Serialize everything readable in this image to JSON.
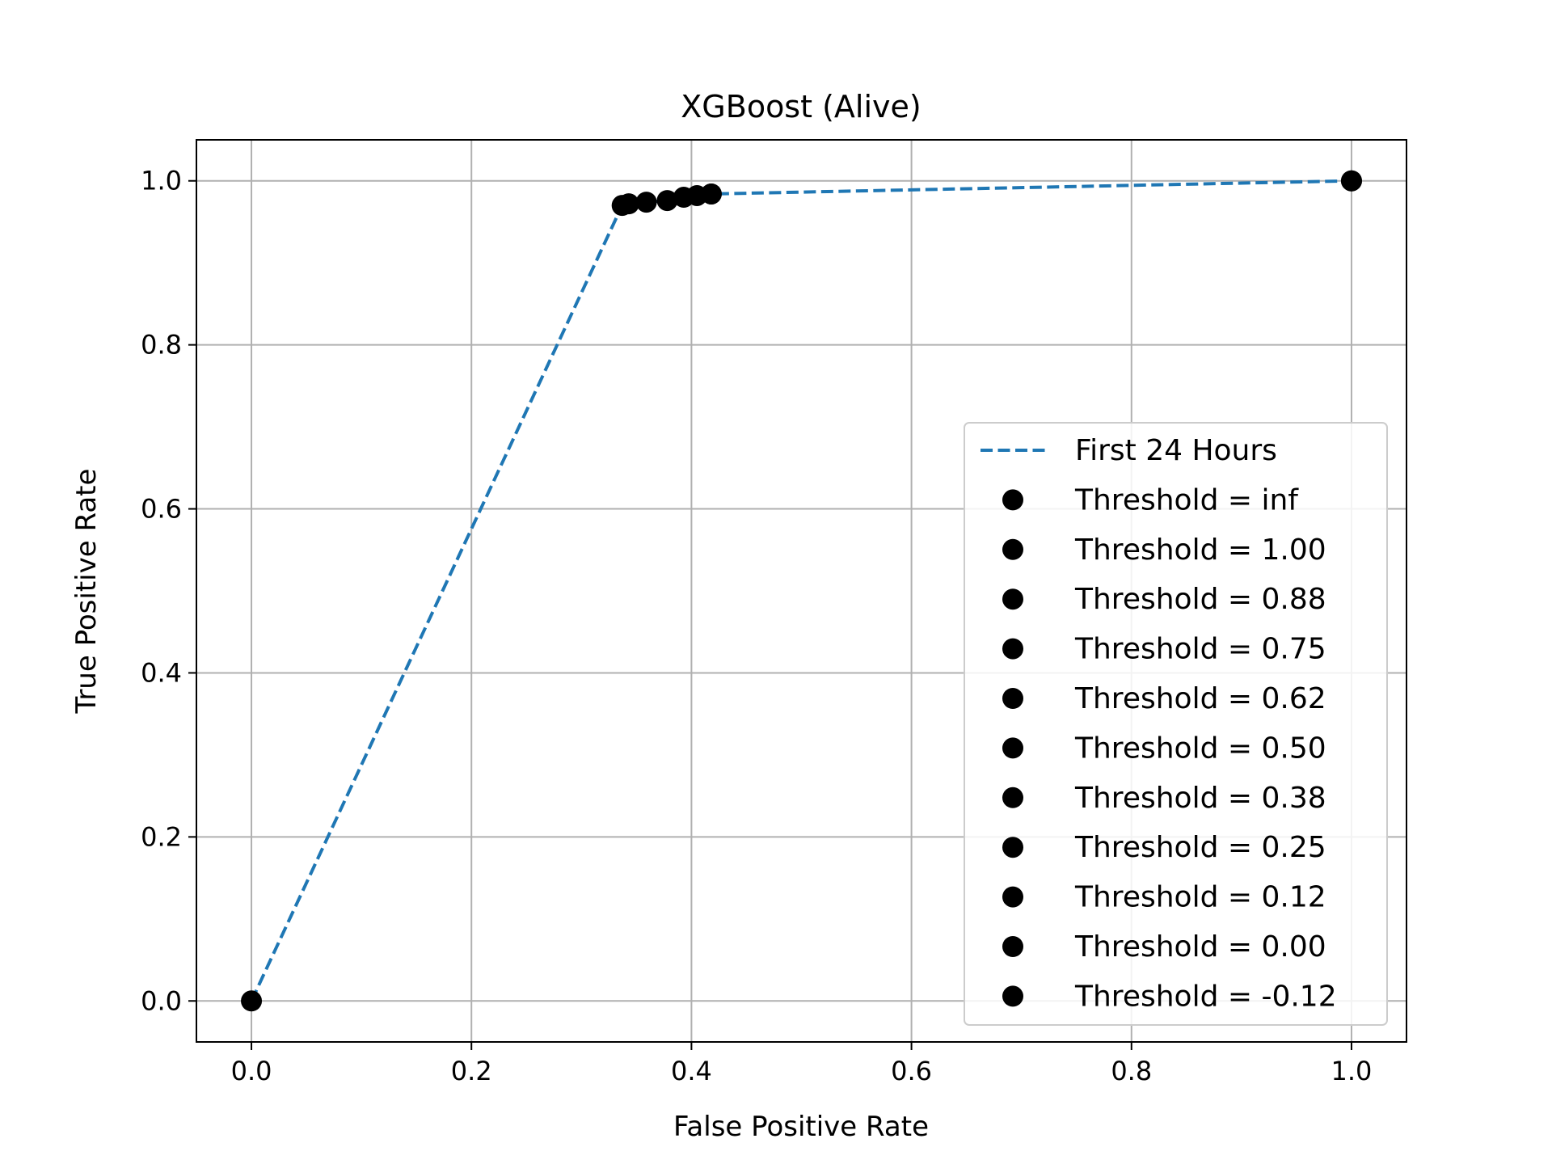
{
  "chart_data": {
    "type": "line",
    "title": "XGBoost (Alive)",
    "xlabel": "False Positive Rate",
    "ylabel": "True Positive Rate",
    "xlim": [
      -0.05,
      1.05
    ],
    "ylim": [
      -0.05,
      1.05
    ],
    "xticks": [
      "0.0",
      "0.2",
      "0.4",
      "0.6",
      "0.8",
      "1.0"
    ],
    "yticks": [
      "0.0",
      "0.2",
      "0.4",
      "0.6",
      "0.8",
      "1.0"
    ],
    "grid": true,
    "legend_position": "lower-right",
    "line_color": "#1f77b4",
    "point_color": "#000000",
    "series": [
      {
        "name": "First 24 Hours",
        "style": "dashed",
        "x": [
          0.0,
          0.337,
          0.343,
          0.359,
          0.378,
          0.393,
          0.405,
          0.418,
          1.0
        ],
        "y": [
          0.0,
          0.97,
          0.972,
          0.974,
          0.976,
          0.98,
          0.982,
          0.984,
          1.0
        ]
      }
    ],
    "points": [
      {
        "label": "Threshold = inf",
        "x": 0.0,
        "y": 0.0
      },
      {
        "label": "Threshold = 1.00",
        "x": 0.337,
        "y": 0.97
      },
      {
        "label": "Threshold = 0.88",
        "x": 0.343,
        "y": 0.972
      },
      {
        "label": "Threshold = 0.75",
        "x": 0.359,
        "y": 0.974
      },
      {
        "label": "Threshold = 0.62",
        "x": 0.378,
        "y": 0.976
      },
      {
        "label": "Threshold = 0.50",
        "x": 0.393,
        "y": 0.98
      },
      {
        "label": "Threshold = 0.38",
        "x": 0.405,
        "y": 0.982
      },
      {
        "label": "Threshold = 0.25",
        "x": 0.418,
        "y": 0.984
      },
      {
        "label": "Threshold = 0.12",
        "x": 0.418,
        "y": 0.984
      },
      {
        "label": "Threshold = 0.00",
        "x": 1.0,
        "y": 1.0
      },
      {
        "label": "Threshold = -0.12",
        "x": 1.0,
        "y": 1.0
      }
    ]
  }
}
